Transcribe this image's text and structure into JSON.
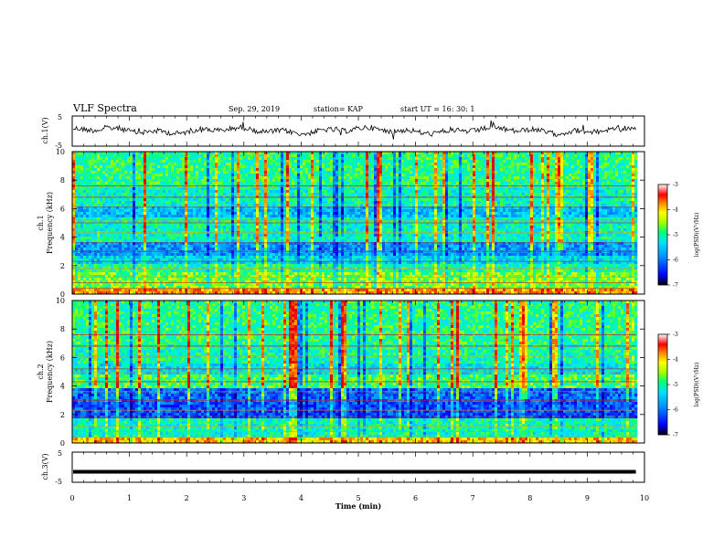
{
  "header": {
    "title": "VLF Spectra",
    "date": "Sep. 29, 2019",
    "station": "station= KAP",
    "start": "start  UT =   16: 30: 1"
  },
  "chart_data": [
    {
      "type": "line",
      "ylabel": "ch.1(V)",
      "ylim": [
        -5,
        5
      ],
      "yticks": [
        "5",
        "-5"
      ],
      "description_series": "noisy waveform around -1 V"
    },
    {
      "type": "heatmap",
      "ylabel_line1": "ch.1",
      "ylabel_line2": "Frequency  (kHz)",
      "ylim": [
        0,
        10
      ],
      "yticks": [
        "0",
        "2",
        "4",
        "6",
        "8",
        "10"
      ],
      "colorbar": {
        "label": "log(PSD)(V²/Hz)",
        "range": [
          -7,
          -3
        ],
        "ticks": [
          "-3",
          "-4",
          "-5",
          "-6",
          "-7"
        ]
      }
    },
    {
      "type": "heatmap",
      "ylabel_line1": "ch.2",
      "ylabel_line2": "Frequency  (kHz)",
      "ylim": [
        0,
        10
      ],
      "yticks": [
        "0",
        "2",
        "4",
        "6",
        "8",
        "10"
      ],
      "colorbar": {
        "label": "log(PSD)(V²/Hz)",
        "range": [
          -7,
          -3
        ],
        "ticks": [
          "-3",
          "-4",
          "-5",
          "-6",
          "-7"
        ]
      }
    },
    {
      "type": "line",
      "ylabel": "ch.3(V)",
      "ylim": [
        -5,
        5
      ],
      "yticks": [
        "5",
        "-5"
      ],
      "constant_value": -1.5
    }
  ],
  "xaxis": {
    "label": "Time  (min)",
    "range": [
      0,
      10
    ],
    "ticks": [
      "0",
      "1",
      "2",
      "3",
      "4",
      "5",
      "6",
      "7",
      "8",
      "9",
      "10"
    ],
    "data_end": 9.85
  },
  "colors": {
    "colormap": [
      "#00007f",
      "#0000ff",
      "#007fff",
      "#00ffff",
      "#7fff7f",
      "#ffff00",
      "#ff7f00",
      "#ff0000",
      "#7f0000"
    ]
  }
}
